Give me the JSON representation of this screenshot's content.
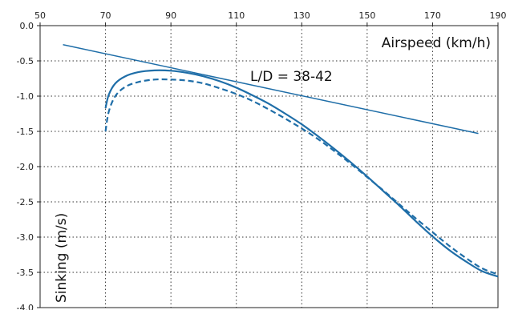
{
  "chart_data": {
    "type": "line",
    "xlabel": "Airspeed (km/h)",
    "ylabel": "Sinking (m/s)",
    "annotation": "L/D = 38-42",
    "x_ticks": [
      50,
      70,
      90,
      110,
      130,
      150,
      170,
      190
    ],
    "y_ticks": [
      0.0,
      -0.5,
      -1.0,
      -1.5,
      -2.0,
      -2.5,
      -3.0,
      -3.5,
      -4.0
    ],
    "x_tick_labels": [
      "50",
      "70",
      "90",
      "110",
      "130",
      "150",
      "170",
      "190"
    ],
    "y_tick_labels": [
      "0.0",
      "-0.5",
      "-1.0",
      "-1.5",
      "-2.0",
      "-2.5",
      "-3.0",
      "-3.5",
      "-4.0"
    ],
    "xlim": [
      50,
      190
    ],
    "ylim": [
      -4.0,
      0.0
    ],
    "grid": true,
    "colors": {
      "series": "#1f6ea8",
      "frame": "#222222",
      "grid": "#333333"
    },
    "series": [
      {
        "style": "solid",
        "x": [
          70,
          71,
          73,
          76,
          80,
          85,
          90,
          95,
          100,
          105,
          110,
          115,
          120,
          125,
          130,
          135,
          140,
          145,
          150,
          155,
          160,
          165,
          170,
          175,
          180,
          185,
          190
        ],
        "y": [
          -1.17,
          -0.98,
          -0.82,
          -0.72,
          -0.66,
          -0.635,
          -0.64,
          -0.67,
          -0.72,
          -0.79,
          -0.88,
          -0.99,
          -1.11,
          -1.25,
          -1.4,
          -1.57,
          -1.75,
          -1.94,
          -2.14,
          -2.35,
          -2.56,
          -2.78,
          -2.99,
          -3.18,
          -3.34,
          -3.48,
          -3.56
        ]
      },
      {
        "style": "dashed",
        "x": [
          70,
          71,
          73,
          76,
          80,
          85,
          90,
          95,
          100,
          105,
          110,
          115,
          120,
          125,
          130,
          135,
          140,
          145,
          150,
          155,
          160,
          165,
          170,
          175,
          180,
          185,
          190
        ],
        "y": [
          -1.5,
          -1.22,
          -1.0,
          -0.87,
          -0.8,
          -0.765,
          -0.765,
          -0.78,
          -0.82,
          -0.89,
          -0.97,
          -1.07,
          -1.19,
          -1.32,
          -1.46,
          -1.61,
          -1.78,
          -1.96,
          -2.15,
          -2.34,
          -2.54,
          -2.74,
          -2.93,
          -3.12,
          -3.29,
          -3.44,
          -3.53
        ]
      },
      {
        "style": "tangent",
        "x": [
          57,
          184
        ],
        "y": [
          -0.27,
          -1.53
        ]
      }
    ]
  }
}
